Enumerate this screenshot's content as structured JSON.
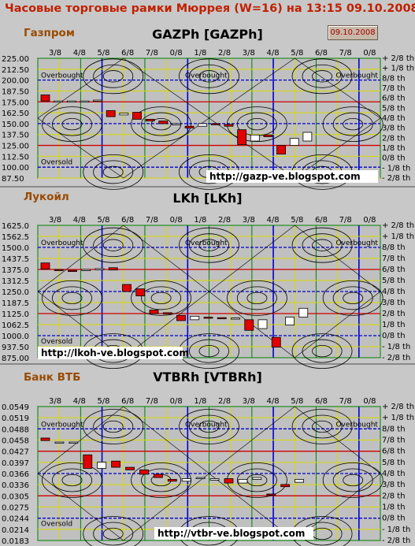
{
  "page_title": "Часовые торговые рамки Мюррея (W=16) на 13:15 09.10.2008",
  "top_labels": [
    "3/8",
    "4/8",
    "5/8",
    "6/8",
    "7/8",
    "0/8",
    "1/8",
    "2/8",
    "3/8",
    "4/8",
    "5/8",
    "6/8",
    "7/8",
    "0/8"
  ],
  "top_labels2": [
    "3/8",
    "4/8",
    "5/8",
    "6/8",
    "7/8",
    "0/8",
    "1/8",
    "2/8",
    "3/8",
    "4/8",
    "5/8",
    "6/8",
    "7/8",
    "0/8"
  ],
  "top_labels3": [
    "3/8",
    "4/8",
    "5/8",
    "6/8",
    "7/8",
    "0/8",
    "1/8",
    "2/8",
    "3/8",
    "4/8",
    "5/8",
    "6/8",
    "7/8",
    "0/8"
  ],
  "right_labels": [
    "+ 2/8 th",
    "+ 1/8 th",
    "8/8 th",
    "7/8 th",
    "6/8 th",
    "5/8 th",
    "4/8 th",
    "3/8 th",
    "2/8 th",
    "1/8 th",
    "0/8 th",
    "- 1/8 th",
    "- 2/8 th"
  ],
  "panels": [
    {
      "company": "Газпром",
      "title": "GAZPh [GAZPh]",
      "date": "09.10.2008",
      "url": "http://gazp-ve.blogspot.com",
      "overbought": "Overbought",
      "oversold": "Oversold",
      "price_labels": [
        "225.00",
        "212.50",
        "200.00",
        "187.50",
        "175.00",
        "162.50",
        "150.00",
        "137.50",
        "125.00",
        "112.50",
        "100.00",
        "87.50"
      ]
    },
    {
      "company": "Лукойл",
      "title": "LKh [LKh]",
      "url": "http://lkoh-ve.blogspot.com",
      "overbought": "Overbought",
      "oversold": "Oversold",
      "price_labels": [
        "1625.0",
        "1562.5",
        "1500.0",
        "1437.5",
        "1375.0",
        "1312.5",
        "1250.0",
        "1187.5",
        "1125.0",
        "1062.5",
        "1000.0",
        "937.50",
        "875.00"
      ]
    },
    {
      "company": "Банк ВТБ",
      "title": "VTBRh [VTBRh]",
      "url": "http://vtbr-ve.blogspot.com",
      "overbought": "Overbought",
      "oversold": "Oversold",
      "price_labels": [
        "0.0549",
        "0.0519",
        "0.0488",
        "0.0458",
        "0.0427",
        "0.0397",
        "0.0366",
        "0.0336",
        "0.0305",
        "0.0275",
        "0.0244",
        "0.0214",
        "0.0183"
      ]
    }
  ],
  "colors": {
    "title": "#c02000",
    "company": "#9a4a00",
    "up_candle": "#ffffff",
    "down_candle": "#e00000",
    "grid_bg": "#c0c0c0"
  },
  "chart_data": [
    {
      "type": "candlestick",
      "title": "GAZPh [GAZPh]",
      "ylim": [
        87.5,
        225.0
      ],
      "candles": [
        [
          183,
          183,
          176,
          176
        ],
        [
          176,
          176,
          176,
          176
        ],
        [
          176,
          176,
          176,
          176
        ],
        [
          176,
          176,
          176,
          176
        ],
        [
          177,
          177,
          177,
          177
        ],
        [
          165,
          165,
          158,
          158
        ],
        [
          160,
          162,
          160,
          162
        ],
        [
          163,
          163,
          155,
          155
        ],
        [
          155,
          155,
          153,
          153
        ],
        [
          153,
          153,
          150,
          150
        ],
        [
          150,
          150,
          150,
          150
        ],
        [
          147,
          147,
          145,
          145
        ],
        [
          147,
          150,
          147,
          150
        ],
        [
          150,
          150,
          149,
          149
        ],
        [
          149,
          149,
          147,
          147
        ],
        [
          143,
          143,
          126,
          126
        ],
        [
          130,
          137,
          130,
          137
        ],
        [
          137,
          137,
          135,
          135
        ],
        [
          125,
          125,
          115,
          115
        ],
        [
          125,
          133,
          125,
          133
        ],
        [
          130,
          140,
          130,
          140
        ]
      ]
    },
    {
      "type": "candlestick",
      "title": "LKh [LKh]",
      "ylim": [
        875.0,
        1625.0
      ],
      "candles": [
        [
          1412,
          1412,
          1377,
          1377
        ],
        [
          1375,
          1375,
          1370,
          1370
        ],
        [
          1370,
          1370,
          1368,
          1368
        ],
        [
          1370,
          1375,
          1370,
          1375
        ],
        [
          1375,
          1380,
          1375,
          1380
        ],
        [
          1385,
          1385,
          1372,
          1372
        ],
        [
          1290,
          1290,
          1250,
          1250
        ],
        [
          1265,
          1265,
          1225,
          1225
        ],
        [
          1145,
          1145,
          1125,
          1125
        ],
        [
          1130,
          1130,
          1122,
          1122
        ],
        [
          1115,
          1115,
          1085,
          1085
        ],
        [
          1090,
          1110,
          1090,
          1110
        ],
        [
          1105,
          1105,
          1100,
          1100
        ],
        [
          1102,
          1102,
          1098,
          1098
        ],
        [
          1100,
          1100,
          1100,
          1100
        ],
        [
          1090,
          1090,
          1030,
          1030
        ],
        [
          1040,
          1090,
          1040,
          1090
        ],
        [
          990,
          990,
          935,
          935
        ],
        [
          1060,
          1105,
          1060,
          1105
        ],
        [
          1105,
          1155,
          1105,
          1155
        ]
      ]
    },
    {
      "type": "candlestick",
      "title": "VTBRh [VTBRh]",
      "ylim": [
        0.0183,
        0.0549
      ],
      "candles": [
        [
          0.0463,
          0.0463,
          0.0456,
          0.0456
        ],
        [
          0.0452,
          0.0452,
          0.0452,
          0.0452
        ],
        [
          0.0452,
          0.0452,
          0.0452,
          0.0452
        ],
        [
          0.0417,
          0.0417,
          0.038,
          0.038
        ],
        [
          0.038,
          0.0397,
          0.038,
          0.0397
        ],
        [
          0.04,
          0.04,
          0.0383,
          0.0383
        ],
        [
          0.0383,
          0.0383,
          0.0376,
          0.0376
        ],
        [
          0.0376,
          0.0376,
          0.0364,
          0.0364
        ],
        [
          0.0364,
          0.0364,
          0.0355,
          0.0355
        ],
        [
          0.035,
          0.035,
          0.0345,
          0.0345
        ],
        [
          0.0345,
          0.0352,
          0.0345,
          0.0352
        ],
        [
          0.0352,
          0.0355,
          0.0352,
          0.0355
        ],
        [
          0.0348,
          0.0352,
          0.0348,
          0.0352
        ],
        [
          0.0352,
          0.0352,
          0.034,
          0.034
        ],
        [
          0.034,
          0.035,
          0.034,
          0.035
        ],
        [
          0.035,
          0.0355,
          0.035,
          0.0355
        ],
        [
          0.031,
          0.031,
          0.0307,
          0.0307
        ],
        [
          0.0336,
          0.0336,
          0.033,
          0.033
        ],
        [
          0.0342,
          0.035,
          0.0342,
          0.035
        ]
      ]
    }
  ]
}
